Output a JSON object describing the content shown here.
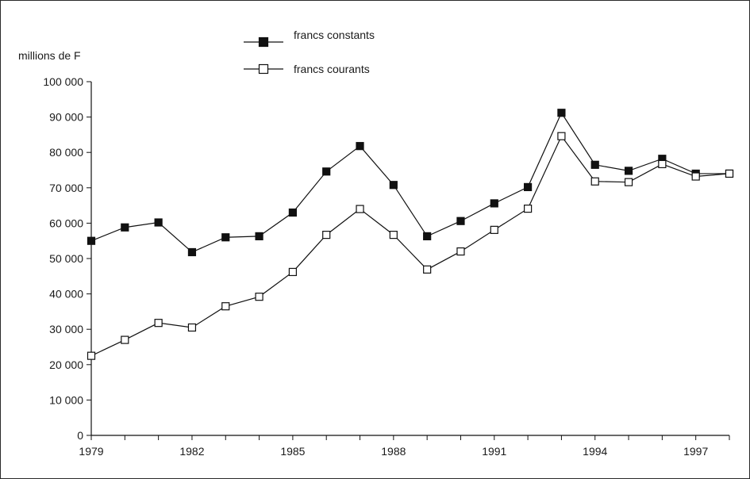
{
  "chart_data": {
    "type": "line",
    "title": "",
    "xlabel": "",
    "ylabel": "millions de F",
    "x": [
      1979,
      1980,
      1981,
      1982,
      1983,
      1984,
      1985,
      1986,
      1987,
      1988,
      1989,
      1990,
      1991,
      1992,
      1993,
      1994,
      1995,
      1996,
      1997,
      1998
    ],
    "xticks": [
      "1979",
      "1982",
      "1985",
      "1988",
      "1991",
      "1994",
      "1997"
    ],
    "xlim": [
      1979,
      1998
    ],
    "yticks": [
      "0",
      "10 000",
      "20 000",
      "30 000",
      "40 000",
      "50 000",
      "60 000",
      "70 000",
      "80 000",
      "90 000",
      "100 000"
    ],
    "ylim": [
      0,
      100000
    ],
    "grid": false,
    "legend_position": "top",
    "series": [
      {
        "name": "francs constants",
        "marker": "filled-square",
        "color": "#111111",
        "values": [
          55000,
          58800,
          60200,
          51800,
          56000,
          56300,
          63000,
          74600,
          81800,
          70800,
          56300,
          60600,
          65600,
          70200,
          91200,
          76500,
          74800,
          78200,
          74000,
          74000
        ]
      },
      {
        "name": "francs courants",
        "marker": "open-square",
        "color": "#111111",
        "values": [
          22500,
          27000,
          31800,
          30500,
          36500,
          39200,
          46200,
          56700,
          64000,
          56700,
          46900,
          52000,
          58100,
          64100,
          84600,
          71800,
          71600,
          76700,
          73200,
          74000
        ]
      }
    ]
  }
}
